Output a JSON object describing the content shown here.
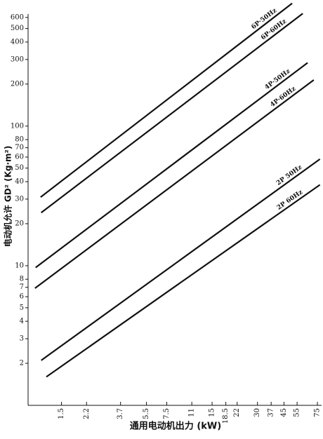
{
  "chart_data": {
    "type": "line",
    "x_label": "通用电动机出力 (kW)",
    "y_label": "电动机允许 GD² (Kg·m²)",
    "x_log": true,
    "y_log": true,
    "xlim": [
      0.9,
      80
    ],
    "ylim": [
      1,
      800
    ],
    "xticks": [
      1.5,
      2.2,
      3.7,
      5.5,
      7.5,
      11,
      15,
      18.5,
      22,
      30,
      37,
      45,
      55,
      75
    ],
    "yticks": [
      2,
      3,
      4,
      5,
      6,
      7,
      8,
      10,
      20,
      30,
      40,
      50,
      60,
      70,
      80,
      100,
      200,
      300,
      400,
      500,
      600
    ],
    "series": [
      {
        "name": "6P·50Hz",
        "color": "#111111",
        "x": [
          1.09,
          51
        ],
        "values": [
          31,
          757
        ]
      },
      {
        "name": "6P·60Hz",
        "color": "#111111",
        "x": [
          1.1,
          60
        ],
        "values": [
          24,
          640
        ]
      },
      {
        "name": "4P·50Hz",
        "color": "#111111",
        "x": [
          1.01,
          64.6
        ],
        "values": [
          9.7,
          284
        ]
      },
      {
        "name": "4P·60Hz",
        "color": "#111111",
        "x": [
          1.0,
          71
        ],
        "values": [
          6.9,
          214
        ]
      },
      {
        "name": "2P 50Hz",
        "color": "#111111",
        "x": [
          1.1,
          78
        ],
        "values": [
          2.1,
          58
        ]
      },
      {
        "name": "2P 60Hz",
        "color": "#111111",
        "x": [
          1.19,
          78
        ],
        "values": [
          1.6,
          38
        ]
      }
    ]
  }
}
